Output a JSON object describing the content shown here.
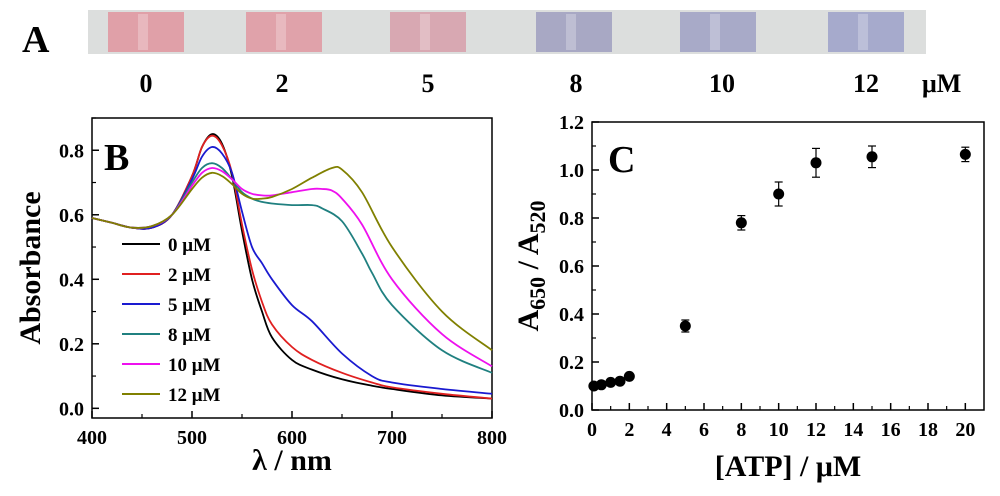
{
  "panel_a": {
    "label": "A",
    "unit": "μM",
    "concentrations": [
      "0",
      "2",
      "5",
      "8",
      "10",
      "12"
    ],
    "vial_colors": [
      "#e0a0a8",
      "#e0a2aa",
      "#d8a8b2",
      "#a8a8c4",
      "#a8aac8",
      "#a6aacc"
    ]
  },
  "chart_data": [
    {
      "type": "line",
      "panel_label": "B",
      "xlabel": "λ / nm",
      "ylabel": "Absorbance",
      "xlim": [
        400,
        800
      ],
      "ylim": [
        -0.03,
        0.9
      ],
      "xticks": [
        "400",
        "500",
        "600",
        "700",
        "800"
      ],
      "yticks": [
        "0.0",
        "0.2",
        "0.4",
        "0.6",
        "0.8"
      ],
      "legend_position": "lower-left",
      "series": [
        {
          "name": "0 μM",
          "color": "#000000",
          "x": [
            400,
            420,
            440,
            460,
            480,
            500,
            510,
            520,
            530,
            540,
            550,
            560,
            570,
            580,
            600,
            620,
            650,
            680,
            700,
            750,
            800
          ],
          "y": [
            0.59,
            0.575,
            0.56,
            0.56,
            0.6,
            0.72,
            0.81,
            0.85,
            0.82,
            0.72,
            0.55,
            0.4,
            0.3,
            0.22,
            0.15,
            0.12,
            0.09,
            0.07,
            0.06,
            0.04,
            0.03
          ]
        },
        {
          "name": "2 μM",
          "color": "#e02020",
          "x": [
            400,
            420,
            440,
            460,
            480,
            500,
            510,
            520,
            530,
            540,
            550,
            560,
            570,
            580,
            600,
            620,
            650,
            680,
            700,
            750,
            800
          ],
          "y": [
            0.59,
            0.575,
            0.56,
            0.56,
            0.6,
            0.72,
            0.81,
            0.845,
            0.815,
            0.73,
            0.57,
            0.43,
            0.33,
            0.26,
            0.19,
            0.15,
            0.11,
            0.08,
            0.065,
            0.045,
            0.03
          ]
        },
        {
          "name": "5 μM",
          "color": "#1a1ad0",
          "x": [
            400,
            420,
            440,
            460,
            480,
            500,
            510,
            520,
            530,
            540,
            550,
            560,
            570,
            580,
            600,
            620,
            650,
            680,
            700,
            750,
            800
          ],
          "y": [
            0.59,
            0.575,
            0.56,
            0.56,
            0.6,
            0.71,
            0.78,
            0.81,
            0.79,
            0.73,
            0.61,
            0.5,
            0.45,
            0.4,
            0.32,
            0.27,
            0.17,
            0.1,
            0.08,
            0.06,
            0.045
          ]
        },
        {
          "name": "8 μM",
          "color": "#208080",
          "x": [
            400,
            420,
            440,
            460,
            480,
            500,
            510,
            520,
            530,
            540,
            550,
            560,
            570,
            580,
            600,
            620,
            630,
            650,
            670,
            680,
            700,
            750,
            800
          ],
          "y": [
            0.59,
            0.575,
            0.56,
            0.565,
            0.6,
            0.7,
            0.745,
            0.76,
            0.745,
            0.71,
            0.67,
            0.65,
            0.64,
            0.635,
            0.63,
            0.63,
            0.62,
            0.58,
            0.48,
            0.42,
            0.32,
            0.18,
            0.11
          ]
        },
        {
          "name": "10 μM",
          "color": "#ee10ee",
          "x": [
            400,
            420,
            440,
            460,
            480,
            500,
            510,
            520,
            530,
            540,
            550,
            560,
            570,
            580,
            600,
            620,
            630,
            640,
            650,
            670,
            700,
            750,
            800
          ],
          "y": [
            0.59,
            0.575,
            0.56,
            0.565,
            0.6,
            0.69,
            0.73,
            0.745,
            0.735,
            0.71,
            0.68,
            0.665,
            0.66,
            0.66,
            0.67,
            0.68,
            0.68,
            0.675,
            0.65,
            0.57,
            0.4,
            0.23,
            0.13
          ]
        },
        {
          "name": "12 μM",
          "color": "#808000",
          "x": [
            400,
            420,
            440,
            460,
            480,
            500,
            510,
            520,
            530,
            540,
            550,
            560,
            570,
            580,
            600,
            620,
            640,
            650,
            670,
            700,
            750,
            800
          ],
          "y": [
            0.59,
            0.575,
            0.56,
            0.565,
            0.6,
            0.68,
            0.715,
            0.73,
            0.72,
            0.695,
            0.665,
            0.65,
            0.65,
            0.655,
            0.68,
            0.715,
            0.745,
            0.74,
            0.67,
            0.5,
            0.3,
            0.18
          ]
        }
      ]
    },
    {
      "type": "scatter",
      "panel_label": "C",
      "xlabel": "[ATP] / μM",
      "ylabel": "A650 / A520",
      "ylabel_parts": {
        "a": "A",
        "sub1": "650",
        "slash": " / A",
        "sub2": "520"
      },
      "xlim": [
        0,
        21
      ],
      "ylim": [
        0,
        1.2
      ],
      "xticks": [
        "0",
        "2",
        "4",
        "6",
        "8",
        "10",
        "12",
        "14",
        "16",
        "18",
        "20"
      ],
      "yticks": [
        "0.0",
        "0.2",
        "0.4",
        "0.6",
        "0.8",
        "1.0",
        "1.2"
      ],
      "points": [
        {
          "x": 0.1,
          "y": 0.1,
          "err": 0.0
        },
        {
          "x": 0.5,
          "y": 0.105,
          "err": 0.0
        },
        {
          "x": 1.0,
          "y": 0.115,
          "err": 0.0
        },
        {
          "x": 1.5,
          "y": 0.12,
          "err": 0.0
        },
        {
          "x": 2.0,
          "y": 0.14,
          "err": 0.0
        },
        {
          "x": 5.0,
          "y": 0.35,
          "err": 0.025
        },
        {
          "x": 8.0,
          "y": 0.78,
          "err": 0.03
        },
        {
          "x": 10.0,
          "y": 0.9,
          "err": 0.05
        },
        {
          "x": 12.0,
          "y": 1.03,
          "err": 0.06
        },
        {
          "x": 15.0,
          "y": 1.055,
          "err": 0.045
        },
        {
          "x": 20.0,
          "y": 1.065,
          "err": 0.03
        }
      ]
    }
  ]
}
